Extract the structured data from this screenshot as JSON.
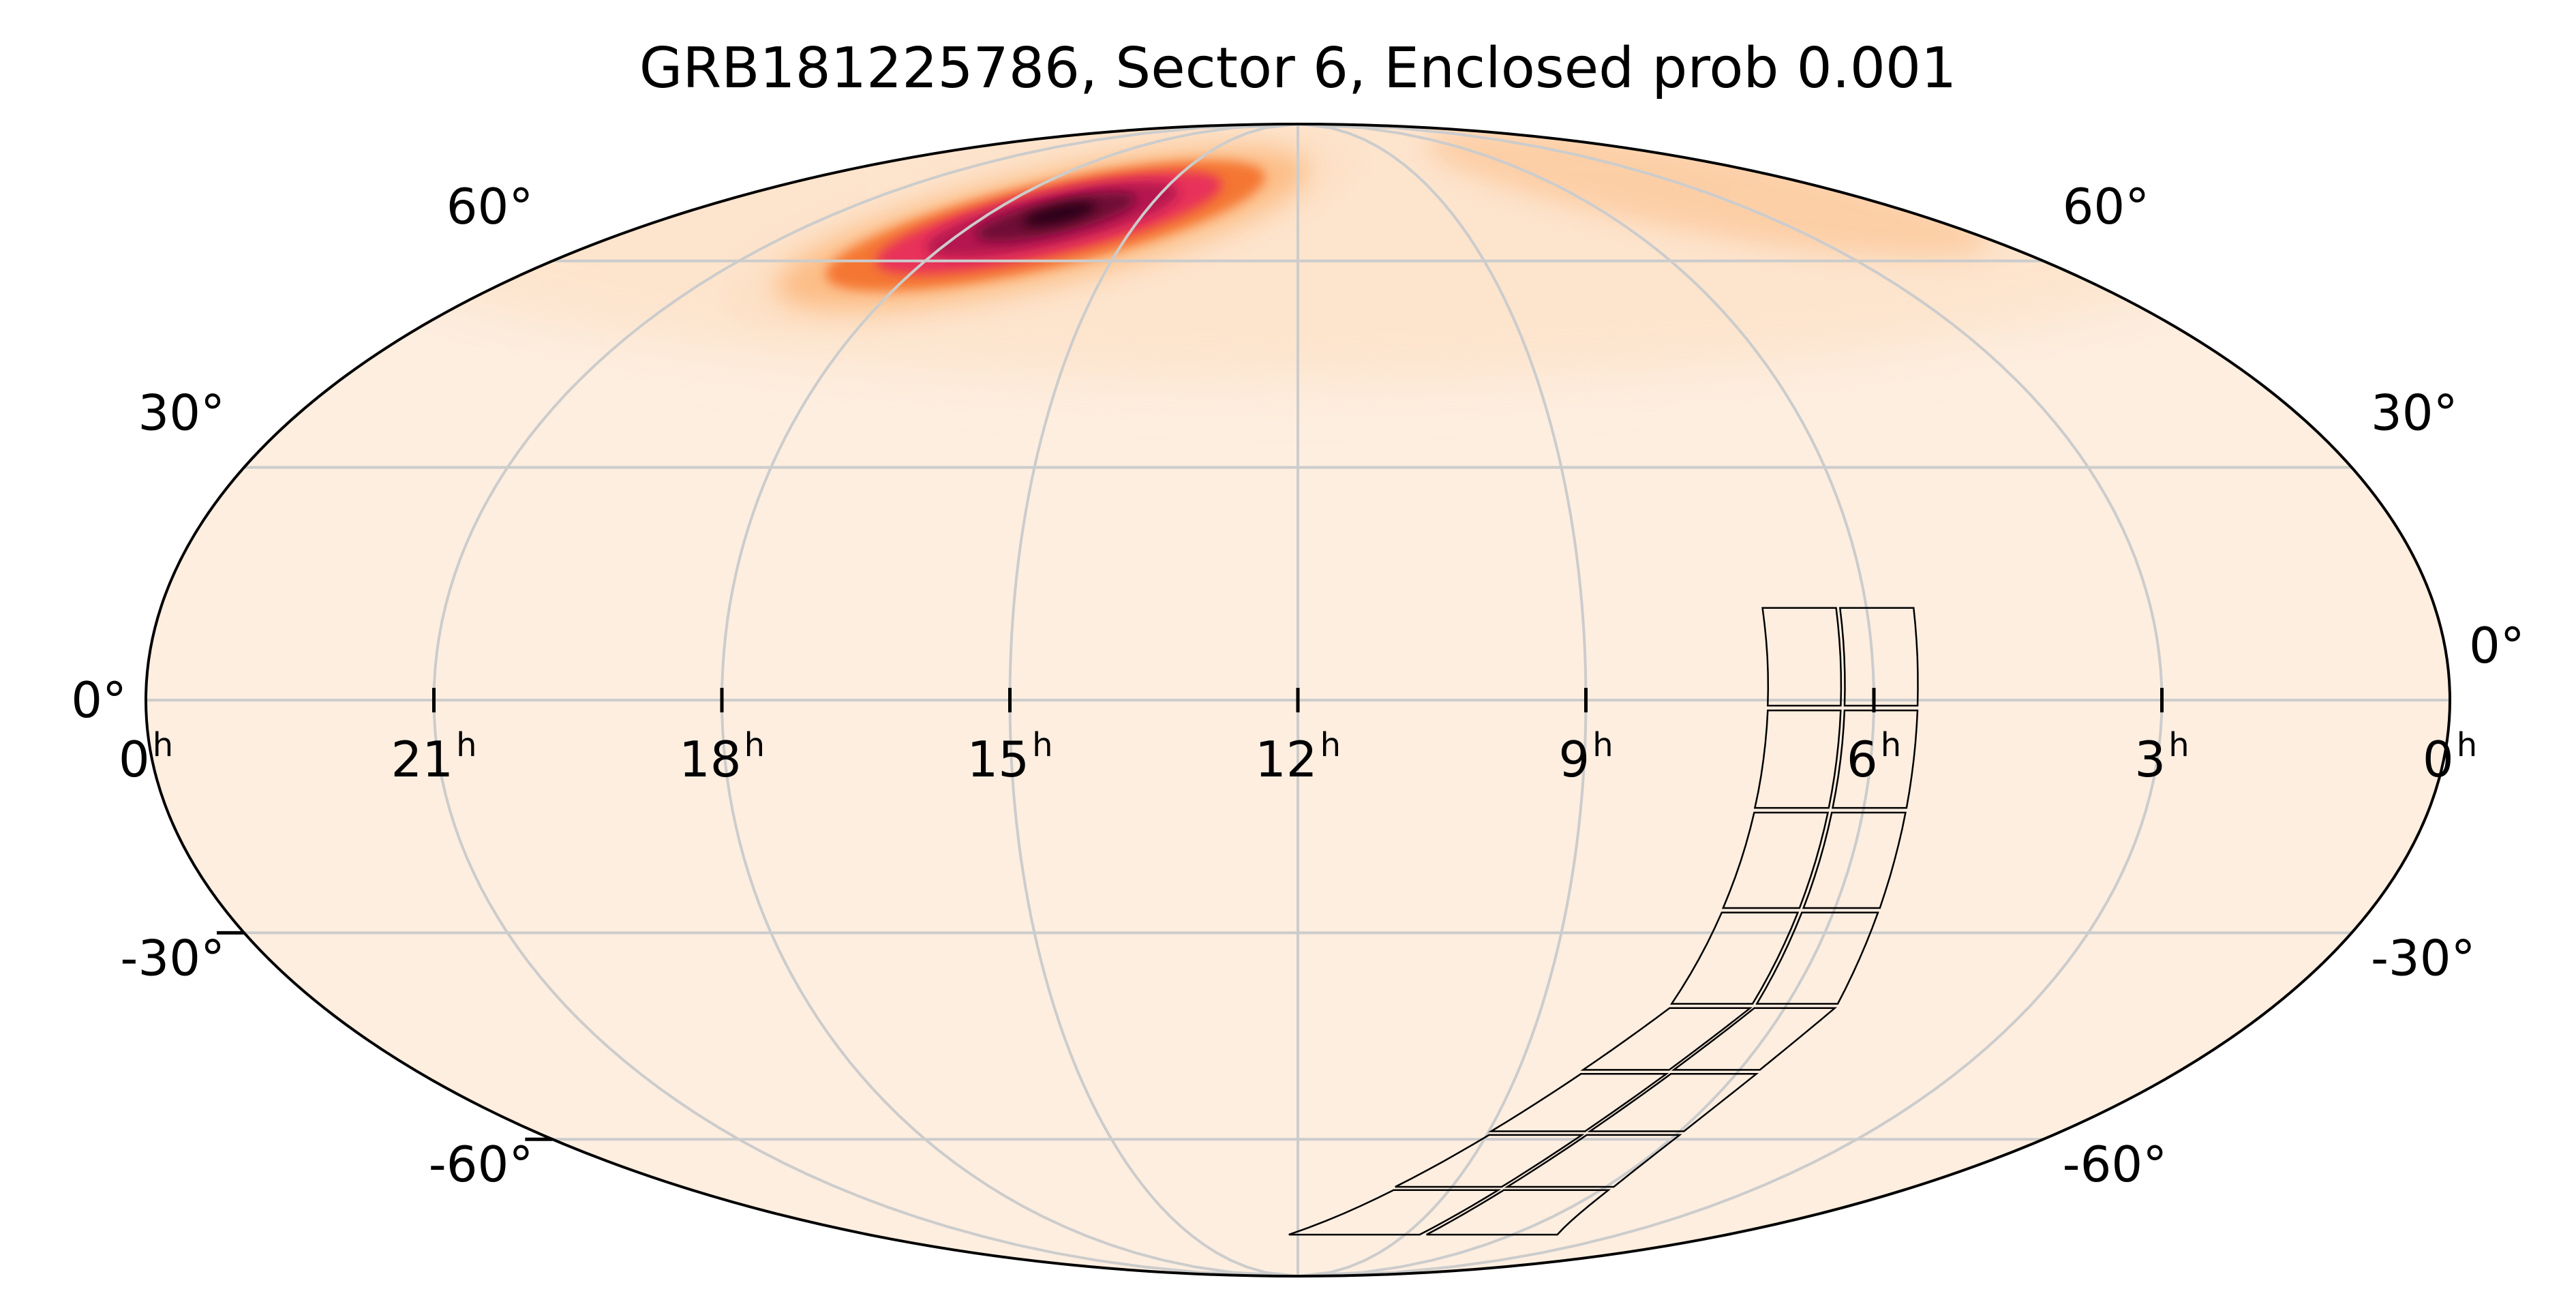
{
  "chart_data": {
    "type": "heatmap",
    "projection": "mollweide",
    "title": "GRB181225786, Sector 6, Enclosed prob 0.001",
    "colormap": {
      "name": "reds-to-black",
      "colors": [
        "#fdeee0",
        "#fde0c5",
        "#fcb980",
        "#f4732f",
        "#e8315a",
        "#b5154f",
        "#6e0834",
        "#2b0418"
      ]
    },
    "grid": true,
    "grid_color": "#cccccc",
    "x_axis": {
      "unit": "h",
      "ra_ticks": [
        0,
        21,
        18,
        15,
        12,
        9,
        6,
        3,
        0
      ],
      "ra_tick_labels": [
        "0",
        "21",
        "18",
        "15",
        "12",
        "9",
        "6",
        "3",
        "0"
      ],
      "sup": "h"
    },
    "y_axis": {
      "dec_ticks": [
        60,
        30,
        0,
        -30,
        -60
      ],
      "dec_tick_labels": [
        "60°",
        "30°",
        "0°",
        "-30°",
        "-60°"
      ]
    },
    "probability_peak": {
      "ra_hours": 16.5,
      "dec_deg": 68
    },
    "footprint": {
      "name": "Sector 6",
      "cameras": 4,
      "ccds_per_camera": 4,
      "center_track": [
        {
          "ra_hours": 6.3,
          "dec_deg": 12
        },
        {
          "ra_hours": 6.4,
          "dec_deg": -40
        },
        {
          "ra_hours": 8.5,
          "dec_deg": -78
        }
      ]
    }
  }
}
